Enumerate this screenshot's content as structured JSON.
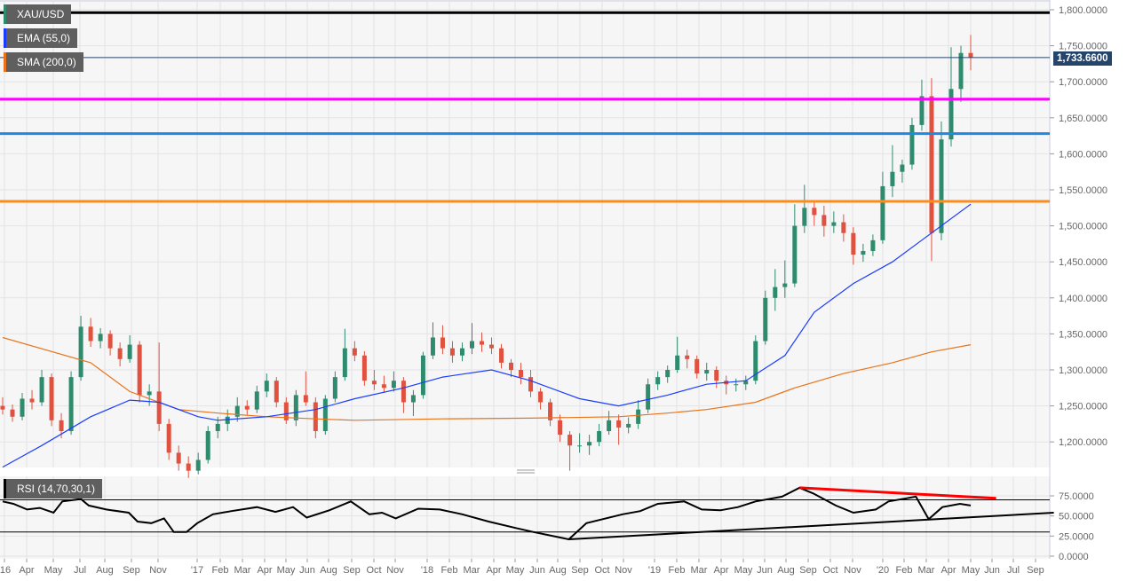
{
  "legend": {
    "symbol": "XAU/USD",
    "ema": "EMA (55,0)",
    "sma": "SMA (200,0)",
    "rsi": "RSI (14,70,30,1)"
  },
  "last_price_label": "1,733.6600",
  "colors": {
    "bull": "#2e8b6e",
    "bear": "#e0523f",
    "ema": "#1a3cff",
    "sma": "#e8731a",
    "last_price": "#24446c",
    "level_black": "#000000",
    "level_magenta": "#ff00ff",
    "level_blue": "#1e88e5",
    "level_orange": "#ff8c1a",
    "rsi_line": "#000000",
    "rsi_trend_red": "#ff0000",
    "rsi_trend_black": "#000000"
  },
  "chart_data": [
    {
      "type": "candlestick",
      "interval": "weekly",
      "ylim": [
        1150,
        1810
      ],
      "grid": true,
      "y_ticks": [
        "1,200.0000",
        "1,250.0000",
        "1,300.0000",
        "1,350.0000",
        "1,400.0000",
        "1,450.0000",
        "1,500.0000",
        "1,550.0000",
        "1,600.0000",
        "1,650.0000",
        "1,700.0000",
        "1,750.0000",
        "1,800.0000"
      ],
      "y_tick_values": [
        1200,
        1250,
        1300,
        1350,
        1400,
        1450,
        1500,
        1550,
        1600,
        1650,
        1700,
        1750,
        1800
      ],
      "x_ticks": [
        "'16",
        "Apr",
        "May",
        "Jul",
        "Aug",
        "Sep",
        "Nov",
        "'17",
        "Feb",
        "Mar",
        "Apr",
        "May",
        "Jun",
        "Aug",
        "Sep",
        "Oct",
        "Nov",
        "'18",
        "Feb",
        "Mar",
        "Apr",
        "May",
        "Jun",
        "Aug",
        "Sep",
        "Oct",
        "Nov",
        "'19",
        "Feb",
        "Mar",
        "Apr",
        "May",
        "Jun",
        "Aug",
        "Sep",
        "Oct",
        "Nov",
        "'20",
        "Feb",
        "Mar",
        "Apr",
        "May",
        "Jun",
        "Jul",
        "Sep"
      ],
      "last_price": 1733.66,
      "horizontal_levels": [
        {
          "value": 1796,
          "color": "#000000"
        },
        {
          "value": 1676,
          "color": "#ff00ff"
        },
        {
          "value": 1628,
          "color": "#1e88e5"
        },
        {
          "value": 1534,
          "color": "#ff8c1a"
        }
      ],
      "ohlc": [
        [
          1250,
          1262,
          1238,
          1245
        ],
        [
          1245,
          1252,
          1228,
          1235
        ],
        [
          1235,
          1268,
          1230,
          1260
        ],
        [
          1260,
          1272,
          1245,
          1255
        ],
        [
          1255,
          1300,
          1250,
          1290
        ],
        [
          1290,
          1295,
          1222,
          1230
        ],
        [
          1230,
          1240,
          1205,
          1215
        ],
        [
          1215,
          1298,
          1210,
          1290
        ],
        [
          1290,
          1375,
          1285,
          1360
        ],
        [
          1360,
          1372,
          1332,
          1340
        ],
        [
          1340,
          1358,
          1330,
          1350
        ],
        [
          1350,
          1355,
          1320,
          1330
        ],
        [
          1330,
          1338,
          1305,
          1315
        ],
        [
          1315,
          1348,
          1310,
          1335
        ],
        [
          1335,
          1340,
          1255,
          1265
        ],
        [
          1265,
          1280,
          1250,
          1270
        ],
        [
          1270,
          1338,
          1215,
          1225
        ],
        [
          1225,
          1232,
          1175,
          1185
        ],
        [
          1185,
          1195,
          1160,
          1170
        ],
        [
          1170,
          1180,
          1150,
          1160
        ],
        [
          1160,
          1185,
          1155,
          1175
        ],
        [
          1175,
          1222,
          1170,
          1215
        ],
        [
          1215,
          1235,
          1205,
          1225
        ],
        [
          1225,
          1245,
          1215,
          1235
        ],
        [
          1235,
          1262,
          1228,
          1250
        ],
        [
          1250,
          1258,
          1238,
          1245
        ],
        [
          1245,
          1278,
          1240,
          1270
        ],
        [
          1270,
          1295,
          1262,
          1285
        ],
        [
          1285,
          1290,
          1248,
          1255
        ],
        [
          1255,
          1262,
          1225,
          1230
        ],
        [
          1230,
          1272,
          1222,
          1265
        ],
        [
          1265,
          1298,
          1250,
          1255
        ],
        [
          1255,
          1262,
          1205,
          1215
        ],
        [
          1215,
          1265,
          1210,
          1260
        ],
        [
          1260,
          1298,
          1255,
          1290
        ],
        [
          1290,
          1357,
          1285,
          1330
        ],
        [
          1330,
          1340,
          1312,
          1320
        ],
        [
          1320,
          1326,
          1278,
          1285
        ],
        [
          1285,
          1300,
          1272,
          1280
        ],
        [
          1280,
          1292,
          1268,
          1275
        ],
        [
          1275,
          1298,
          1270,
          1285
        ],
        [
          1285,
          1290,
          1240,
          1255
        ],
        [
          1255,
          1272,
          1236,
          1265
        ],
        [
          1265,
          1325,
          1260,
          1320
        ],
        [
          1320,
          1366,
          1315,
          1345
        ],
        [
          1345,
          1362,
          1322,
          1330
        ],
        [
          1330,
          1340,
          1310,
          1320
        ],
        [
          1320,
          1338,
          1312,
          1330
        ],
        [
          1330,
          1365,
          1322,
          1340
        ],
        [
          1340,
          1352,
          1325,
          1335
        ],
        [
          1335,
          1345,
          1322,
          1330
        ],
        [
          1330,
          1336,
          1302,
          1310
        ],
        [
          1310,
          1315,
          1290,
          1300
        ],
        [
          1300,
          1310,
          1280,
          1290
        ],
        [
          1290,
          1300,
          1262,
          1270
        ],
        [
          1270,
          1275,
          1245,
          1255
        ],
        [
          1255,
          1260,
          1222,
          1230
        ],
        [
          1230,
          1238,
          1200,
          1210
        ],
        [
          1210,
          1215,
          1160,
          1195
        ],
        [
          1195,
          1212,
          1185,
          1195
        ],
        [
          1195,
          1210,
          1182,
          1200
        ],
        [
          1200,
          1225,
          1194,
          1215
        ],
        [
          1215,
          1243,
          1210,
          1230
        ],
        [
          1230,
          1238,
          1196,
          1220
        ],
        [
          1220,
          1234,
          1212,
          1225
        ],
        [
          1225,
          1258,
          1218,
          1245
        ],
        [
          1245,
          1288,
          1240,
          1280
        ],
        [
          1280,
          1298,
          1272,
          1290
        ],
        [
          1290,
          1306,
          1282,
          1300
        ],
        [
          1300,
          1346,
          1296,
          1320
        ],
        [
          1320,
          1328,
          1302,
          1315
        ],
        [
          1315,
          1320,
          1288,
          1295
        ],
        [
          1295,
          1310,
          1285,
          1300
        ],
        [
          1300,
          1305,
          1275,
          1285
        ],
        [
          1285,
          1292,
          1266,
          1280
        ],
        [
          1280,
          1288,
          1270,
          1280
        ],
        [
          1280,
          1292,
          1272,
          1285
        ],
        [
          1285,
          1348,
          1280,
          1340
        ],
        [
          1340,
          1410,
          1335,
          1400
        ],
        [
          1400,
          1440,
          1382,
          1415
        ],
        [
          1415,
          1452,
          1400,
          1420
        ],
        [
          1420,
          1530,
          1415,
          1500
        ],
        [
          1500,
          1557,
          1490,
          1525
        ],
        [
          1525,
          1535,
          1500,
          1515
        ],
        [
          1515,
          1528,
          1485,
          1500
        ],
        [
          1500,
          1520,
          1490,
          1505
        ],
        [
          1505,
          1516,
          1478,
          1490
        ],
        [
          1490,
          1498,
          1446,
          1460
        ],
        [
          1460,
          1475,
          1450,
          1465
        ],
        [
          1465,
          1488,
          1458,
          1480
        ],
        [
          1480,
          1575,
          1475,
          1555
        ],
        [
          1555,
          1612,
          1540,
          1575
        ],
        [
          1575,
          1592,
          1560,
          1585
        ],
        [
          1585,
          1650,
          1578,
          1640
        ],
        [
          1640,
          1703,
          1632,
          1680
        ],
        [
          1680,
          1705,
          1451,
          1490
        ],
        [
          1490,
          1645,
          1480,
          1620
        ],
        [
          1620,
          1748,
          1610,
          1690
        ],
        [
          1690,
          1750,
          1672,
          1740
        ],
        [
          1740,
          1765,
          1716,
          1733.66
        ]
      ],
      "ema_55": [
        [
          0,
          1165
        ],
        [
          4,
          1195
        ],
        [
          9,
          1235
        ],
        [
          13,
          1258
        ],
        [
          16,
          1255
        ],
        [
          20,
          1235
        ],
        [
          22,
          1230
        ],
        [
          27,
          1235
        ],
        [
          32,
          1245
        ],
        [
          36,
          1260
        ],
        [
          41,
          1275
        ],
        [
          45,
          1290
        ],
        [
          50,
          1300
        ],
        [
          54,
          1285
        ],
        [
          59,
          1260
        ],
        [
          63,
          1250
        ],
        [
          68,
          1265
        ],
        [
          72,
          1280
        ],
        [
          76,
          1285
        ],
        [
          80,
          1320
        ],
        [
          83,
          1380
        ],
        [
          87,
          1420
        ],
        [
          91,
          1450
        ],
        [
          94,
          1480
        ],
        [
          99,
          1530
        ]
      ],
      "sma_200": [
        [
          0,
          1345
        ],
        [
          9,
          1310
        ],
        [
          13,
          1270
        ],
        [
          18,
          1245
        ],
        [
          22,
          1240
        ],
        [
          27,
          1235
        ],
        [
          32,
          1232
        ],
        [
          36,
          1230
        ],
        [
          45,
          1232
        ],
        [
          54,
          1233
        ],
        [
          63,
          1235
        ],
        [
          68,
          1240
        ],
        [
          72,
          1245
        ],
        [
          77,
          1255
        ],
        [
          81,
          1275
        ],
        [
          86,
          1295
        ],
        [
          91,
          1310
        ],
        [
          95,
          1325
        ],
        [
          99,
          1335
        ]
      ]
    },
    {
      "type": "line",
      "title": "RSI (14,70,30,1)",
      "ylim": [
        0,
        90
      ],
      "y_ticks": [
        "0.0000",
        "25.0000",
        "50.0000",
        "75.0000"
      ],
      "y_tick_values": [
        0,
        25,
        50,
        75
      ],
      "bands": [
        30,
        70
      ],
      "rsi": [
        [
          0,
          68
        ],
        [
          1.1,
          65
        ],
        [
          2.5,
          58
        ],
        [
          3.8,
          60
        ],
        [
          5.2,
          54
        ],
        [
          6.1,
          68
        ],
        [
          8,
          71
        ],
        [
          8.8,
          63
        ],
        [
          10.6,
          58
        ],
        [
          12.9,
          54
        ],
        [
          13.8,
          43
        ],
        [
          15.2,
          41
        ],
        [
          16.5,
          47
        ],
        [
          17.5,
          30
        ],
        [
          18.8,
          30
        ],
        [
          19.9,
          41
        ],
        [
          21.5,
          52
        ],
        [
          23.4,
          56
        ],
        [
          26,
          61
        ],
        [
          27.9,
          55
        ],
        [
          29.7,
          61
        ],
        [
          31.1,
          48
        ],
        [
          33.4,
          57
        ],
        [
          35.6,
          68
        ],
        [
          37.5,
          52
        ],
        [
          38.8,
          54
        ],
        [
          40.2,
          47
        ],
        [
          42.5,
          59
        ],
        [
          44.7,
          58
        ],
        [
          47,
          52
        ],
        [
          49.7,
          43
        ],
        [
          52.5,
          35
        ],
        [
          54.3,
          30
        ],
        [
          57.9,
          21
        ],
        [
          59.7,
          41
        ],
        [
          63.4,
          52
        ],
        [
          65.2,
          56
        ],
        [
          67,
          65
        ],
        [
          69.7,
          68
        ],
        [
          71.5,
          58
        ],
        [
          73.4,
          57
        ],
        [
          75.2,
          61
        ],
        [
          77,
          68
        ],
        [
          79.7,
          74
        ],
        [
          81.5,
          85
        ],
        [
          82.9,
          78
        ],
        [
          85.2,
          63
        ],
        [
          87,
          54
        ],
        [
          89.3,
          58
        ],
        [
          90.6,
          68
        ],
        [
          93.4,
          74
        ],
        [
          94.7,
          46
        ],
        [
          96.1,
          61
        ],
        [
          97.9,
          65
        ],
        [
          99,
          63
        ]
      ],
      "trendlines": [
        {
          "color": "#ff0000",
          "from": [
            81.5,
            85
          ],
          "to": [
            101.6,
            72
          ]
        },
        {
          "color": "#000000",
          "from": [
            57.9,
            21
          ],
          "to": [
            107.5,
            54
          ]
        }
      ]
    }
  ]
}
